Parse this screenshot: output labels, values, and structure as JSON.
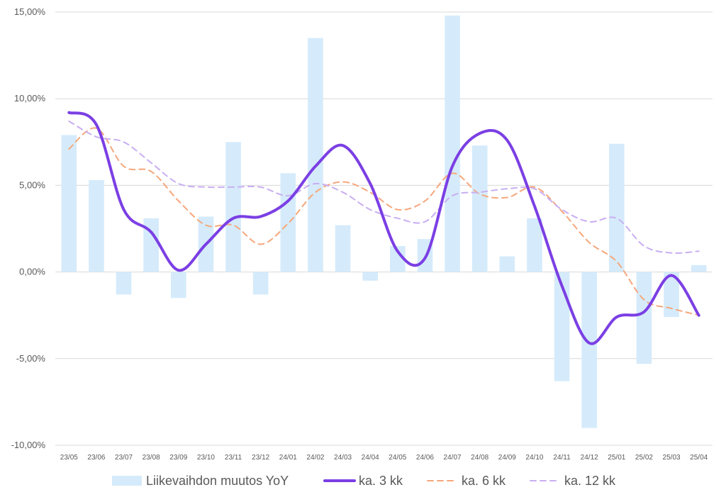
{
  "chart_data": {
    "type": "bar",
    "categories": [
      "23/05",
      "23/06",
      "23/07",
      "23/08",
      "23/09",
      "23/10",
      "23/11",
      "23/12",
      "24/01",
      "24/02",
      "24/03",
      "24/04",
      "24/05",
      "24/06",
      "24/07",
      "24/08",
      "24/09",
      "24/10",
      "24/11",
      "24/12",
      "25/01",
      "25/02",
      "25/03",
      "25/04"
    ],
    "ylim": [
      -10,
      15
    ],
    "yticks": [
      15,
      10,
      5,
      0,
      -5,
      -10
    ],
    "ytick_labels": [
      "15,00%",
      "10,00%",
      "5,00%",
      "0,00%",
      "-5,00%",
      "-10,00%"
    ],
    "grid": true,
    "legend_position": "bottom",
    "series": [
      {
        "name": "Liikevaihdon muutos YoY",
        "type": "bar",
        "color": "#d5ebfb",
        "values": [
          7.9,
          5.3,
          -1.3,
          3.1,
          -1.5,
          3.2,
          7.5,
          -1.3,
          5.7,
          13.5,
          2.7,
          -0.5,
          1.5,
          1.9,
          14.8,
          7.3,
          0.9,
          3.1,
          -6.3,
          -9.0,
          7.4,
          -5.3,
          -2.6,
          0.4
        ]
      },
      {
        "name": "ka. 3 kk",
        "type": "line",
        "color": "#7b3fe4",
        "style": "solid",
        "values": [
          9.2,
          8.5,
          3.6,
          2.3,
          0.1,
          1.6,
          3.1,
          3.2,
          4.1,
          6.1,
          7.3,
          5.1,
          1.2,
          0.8,
          6.1,
          8.0,
          7.6,
          3.8,
          -0.8,
          -4.1,
          -2.6,
          -2.3,
          -0.2,
          -2.5
        ]
      },
      {
        "name": "ka. 6 kk",
        "type": "line",
        "color": "#f5a77c",
        "style": "dashed",
        "values": [
          7.1,
          8.3,
          6.1,
          5.8,
          4.1,
          2.7,
          2.7,
          1.6,
          2.8,
          4.6,
          5.2,
          4.6,
          3.6,
          4.1,
          5.7,
          4.5,
          4.3,
          4.9,
          3.5,
          1.7,
          0.6,
          -1.6,
          -2.1,
          -2.5
        ]
      },
      {
        "name": "ka. 12 kk",
        "type": "line",
        "color": "#c9aef2",
        "style": "dashed",
        "values": [
          8.7,
          7.8,
          7.5,
          6.3,
          5.1,
          4.9,
          4.9,
          4.9,
          4.4,
          5.1,
          4.6,
          3.6,
          3.1,
          2.9,
          4.4,
          4.6,
          4.8,
          4.8,
          3.6,
          2.9,
          3.1,
          1.5,
          1.1,
          1.2
        ]
      }
    ]
  }
}
